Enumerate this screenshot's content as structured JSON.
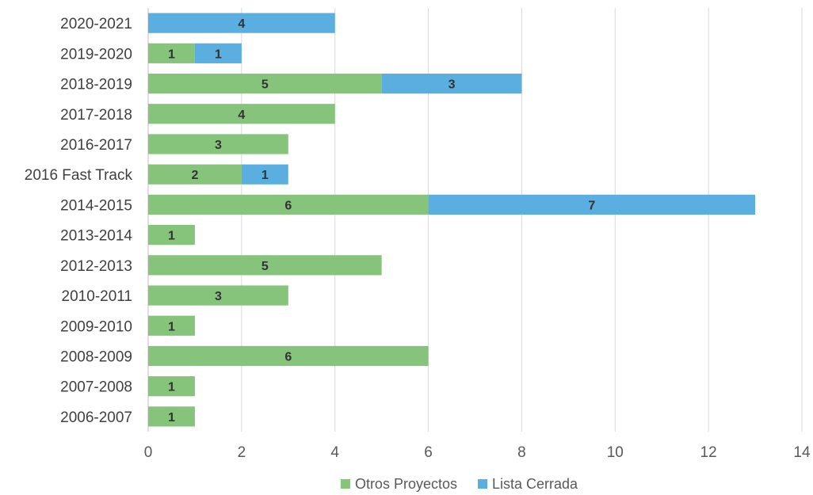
{
  "chart_data": {
    "type": "bar",
    "orientation": "horizontal",
    "stacked": true,
    "categories": [
      "2020-2021",
      "2019-2020",
      "2018-2019",
      "2017-2018",
      "2016-2017",
      "2016 Fast Track",
      "2014-2015",
      "2013-2014",
      "2012-2013",
      "2010-2011",
      "2009-2010",
      "2008-2009",
      "2007-2008",
      "2006-2007"
    ],
    "series": [
      {
        "name": "Otros Proyectos",
        "color": "#86c47c",
        "values": [
          0,
          1,
          5,
          4,
          3,
          2,
          6,
          1,
          5,
          3,
          1,
          6,
          1,
          1
        ]
      },
      {
        "name": "Lista Cerrada",
        "color": "#5aaee0",
        "values": [
          4,
          1,
          3,
          0,
          0,
          1,
          7,
          0,
          0,
          0,
          0,
          0,
          0,
          0
        ]
      }
    ],
    "xlim": [
      0,
      14
    ],
    "xticks": [
      0,
      2,
      4,
      6,
      8,
      10,
      12,
      14
    ],
    "grid": true,
    "data_labels": true,
    "legend": "bottom"
  }
}
